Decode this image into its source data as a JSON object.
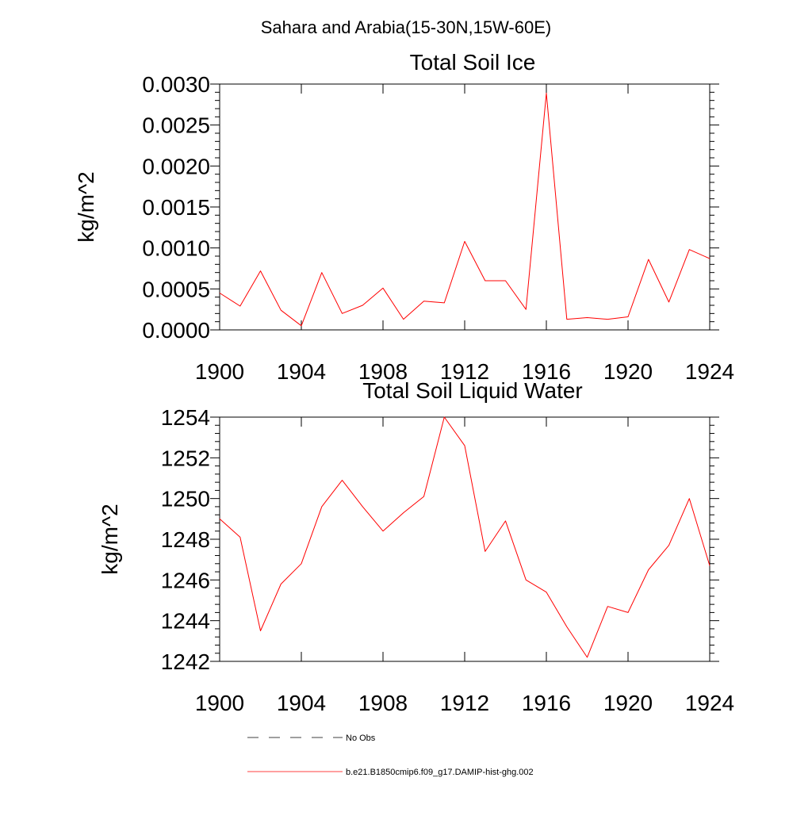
{
  "figure": {
    "title": "Sahara and Arabia(15-30N,15W-60E)"
  },
  "chart_data": [
    {
      "type": "line",
      "title": "Total Soil Ice",
      "xlabel": "",
      "ylabel": "kg/m^2",
      "xlim": [
        1900,
        1924
      ],
      "ylim": [
        0,
        0.003
      ],
      "xticks": [
        1900,
        1904,
        1908,
        1912,
        1916,
        1920,
        1924
      ],
      "xtick_labels": [
        "1900",
        "1904",
        "1908",
        "1912",
        "1916",
        "1920",
        "1924"
      ],
      "yticks": [
        0,
        0.0005,
        0.001,
        0.0015,
        0.002,
        0.0025,
        0.003
      ],
      "ytick_labels": [
        "0.0000",
        "0.0005",
        "0.0010",
        "0.0015",
        "0.0020",
        "0.0025",
        "0.0030"
      ],
      "grid": false,
      "x": [
        1900,
        1901,
        1902,
        1903,
        1904,
        1905,
        1906,
        1907,
        1908,
        1909,
        1910,
        1911,
        1912,
        1913,
        1914,
        1915,
        1916,
        1917,
        1918,
        1919,
        1920,
        1921,
        1922,
        1923,
        1924
      ],
      "series": [
        {
          "name": "b.e21.B1850cmip6.f09_g17.DAMIP-hist-ghg.002",
          "color": "#ff0000",
          "values": [
            0.00045,
            0.00029,
            0.00072,
            0.00024,
            5e-05,
            0.0007,
            0.0002,
            0.0003,
            0.00051,
            0.00013,
            0.00035,
            0.00033,
            0.00108,
            0.0006,
            0.0006,
            0.00025,
            0.00289,
            0.00013,
            0.00015,
            0.00013,
            0.00016,
            0.00086,
            0.00034,
            0.00098,
            0.00087
          ]
        }
      ]
    },
    {
      "type": "line",
      "title": "Total Soil Liquid Water",
      "xlabel": "",
      "ylabel": "kg/m^2",
      "xlim": [
        1900,
        1924
      ],
      "ylim": [
        1242,
        1254
      ],
      "xticks": [
        1900,
        1904,
        1908,
        1912,
        1916,
        1920,
        1924
      ],
      "xtick_labels": [
        "1900",
        "1904",
        "1908",
        "1912",
        "1916",
        "1920",
        "1924"
      ],
      "yticks": [
        1242,
        1244,
        1246,
        1248,
        1250,
        1252,
        1254
      ],
      "ytick_labels": [
        "1242",
        "1244",
        "1246",
        "1248",
        "1250",
        "1252",
        "1254"
      ],
      "grid": false,
      "x": [
        1900,
        1901,
        1902,
        1903,
        1904,
        1905,
        1906,
        1907,
        1908,
        1909,
        1910,
        1911,
        1912,
        1913,
        1914,
        1915,
        1916,
        1917,
        1918,
        1919,
        1920,
        1921,
        1922,
        1923,
        1924
      ],
      "series": [
        {
          "name": "b.e21.B1850cmip6.f09_g17.DAMIP-hist-ghg.002",
          "color": "#ff0000",
          "values": [
            1249.0,
            1248.1,
            1243.5,
            1245.8,
            1246.8,
            1249.6,
            1250.9,
            1249.6,
            1248.4,
            1249.3,
            1250.1,
            1254.0,
            1252.6,
            1247.4,
            1248.9,
            1246.0,
            1245.4,
            1243.7,
            1242.2,
            1244.7,
            1244.4,
            1246.5,
            1247.7,
            1250.0,
            1246.7
          ]
        }
      ]
    }
  ],
  "legend": {
    "placement": "bottom",
    "entries": [
      {
        "label": "No Obs",
        "color": "#000000",
        "style": "dashed"
      },
      {
        "label": "b.e21.B1850cmip6.f09_g17.DAMIP-hist-ghg.002",
        "color": "#ff0000",
        "style": "solid"
      }
    ]
  }
}
